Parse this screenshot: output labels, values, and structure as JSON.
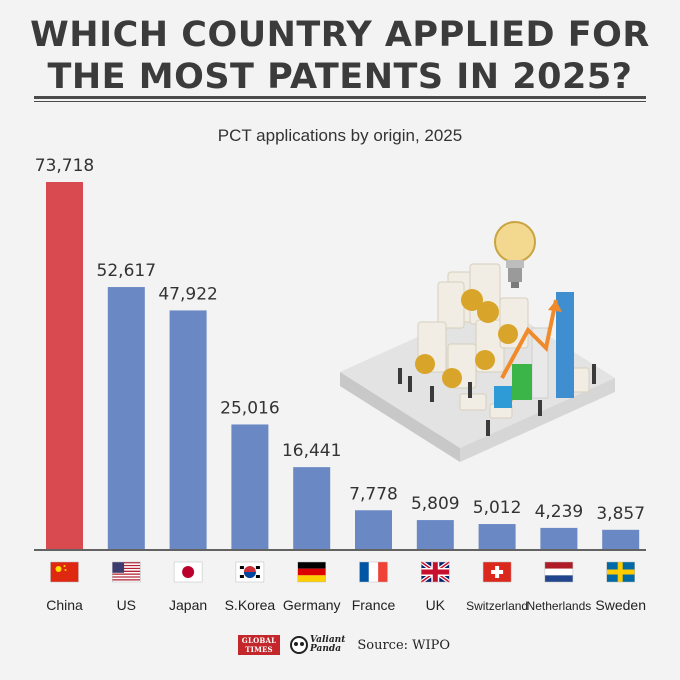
{
  "header": {
    "title_line1": "WHICH COUNTRY APPLIED FOR",
    "title_line2": "THE MOST PATENTS IN 2025?"
  },
  "chart_data": {
    "type": "bar",
    "title": "PCT applications by origin, 2025",
    "categories": [
      "China",
      "US",
      "Japan",
      "S.Korea",
      "Germany",
      "France",
      "UK",
      "Switzerland",
      "Netherlands",
      "Sweden"
    ],
    "values": [
      73718,
      52617,
      47922,
      25016,
      16441,
      7778,
      5809,
      5012,
      4239,
      3857
    ],
    "value_labels": [
      "73,718",
      "52,617",
      "47,922",
      "25,016",
      "16,441",
      "7,778",
      "5,809",
      "5,012",
      "4,239",
      "3,857"
    ],
    "ylim": [
      0,
      73718
    ],
    "colors": {
      "highlight": "#d94a50",
      "default": "#6a88c4"
    },
    "highlight_index": 0,
    "grid": false,
    "legend": "none"
  },
  "flags": [
    "china-flag-icon",
    "us-flag-icon",
    "japan-flag-icon",
    "south-korea-flag-icon",
    "germany-flag-icon",
    "france-flag-icon",
    "uk-flag-icon",
    "switzerland-flag-icon",
    "netherlands-flag-icon",
    "sweden-flag-icon"
  ],
  "footer": {
    "gt_logo_text": "GLOBAL TIMES",
    "vp_line1": "Valiant",
    "vp_line2": "Panda",
    "source": "Source: WIPO"
  }
}
